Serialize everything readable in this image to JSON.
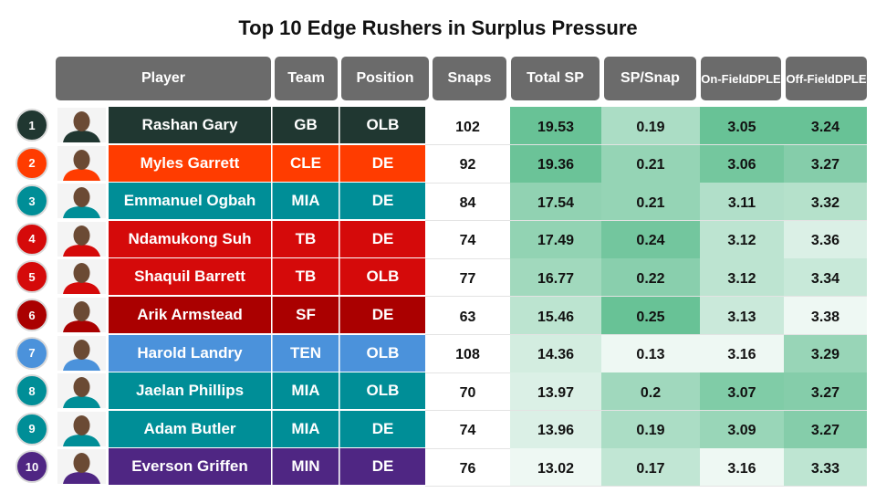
{
  "chart_data": {
    "type": "table",
    "title": "Top 10 Edge Rushers in Surplus Pressure",
    "columns": [
      "Player",
      "Team",
      "Position",
      "Snaps",
      "Total SP",
      "SP/Snap",
      "On-Field DPLE",
      "Off-Field DPLE"
    ],
    "rows": [
      {
        "rank": "1",
        "player": "Rashan Gary",
        "team": "GB",
        "position": "OLB",
        "snaps": "102",
        "total_sp": "19.53",
        "sp_snap": "0.19",
        "on_dple": "3.05",
        "off_dple": "3.24",
        "team_color": "#203731"
      },
      {
        "rank": "2",
        "player": "Myles Garrett",
        "team": "CLE",
        "position": "DE",
        "snaps": "92",
        "total_sp": "19.36",
        "sp_snap": "0.21",
        "on_dple": "3.06",
        "off_dple": "3.27",
        "team_color": "#FF3C00"
      },
      {
        "rank": "3",
        "player": "Emmanuel Ogbah",
        "team": "MIA",
        "position": "DE",
        "snaps": "84",
        "total_sp": "17.54",
        "sp_snap": "0.21",
        "on_dple": "3.11",
        "off_dple": "3.32",
        "team_color": "#008E97"
      },
      {
        "rank": "4",
        "player": "Ndamukong Suh",
        "team": "TB",
        "position": "DE",
        "snaps": "74",
        "total_sp": "17.49",
        "sp_snap": "0.24",
        "on_dple": "3.12",
        "off_dple": "3.36",
        "team_color": "#D50A0A"
      },
      {
        "rank": "5",
        "player": "Shaquil Barrett",
        "team": "TB",
        "position": "OLB",
        "snaps": "77",
        "total_sp": "16.77",
        "sp_snap": "0.22",
        "on_dple": "3.12",
        "off_dple": "3.34",
        "team_color": "#D50A0A"
      },
      {
        "rank": "6",
        "player": "Arik Armstead",
        "team": "SF",
        "position": "DE",
        "snaps": "63",
        "total_sp": "15.46",
        "sp_snap": "0.25",
        "on_dple": "3.13",
        "off_dple": "3.38",
        "team_color": "#AA0000"
      },
      {
        "rank": "7",
        "player": "Harold Landry",
        "team": "TEN",
        "position": "OLB",
        "snaps": "108",
        "total_sp": "14.36",
        "sp_snap": "0.13",
        "on_dple": "3.16",
        "off_dple": "3.29",
        "team_color": "#4B92DB"
      },
      {
        "rank": "8",
        "player": "Jaelan Phillips",
        "team": "MIA",
        "position": "OLB",
        "snaps": "70",
        "total_sp": "13.97",
        "sp_snap": "0.2",
        "on_dple": "3.07",
        "off_dple": "3.27",
        "team_color": "#008E97"
      },
      {
        "rank": "9",
        "player": "Adam Butler",
        "team": "MIA",
        "position": "DE",
        "snaps": "74",
        "total_sp": "13.96",
        "sp_snap": "0.19",
        "on_dple": "3.09",
        "off_dple": "3.27",
        "team_color": "#008E97"
      },
      {
        "rank": "10",
        "player": "Everson Griffen",
        "team": "MIN",
        "position": "DE",
        "snaps": "76",
        "total_sp": "13.02",
        "sp_snap": "0.17",
        "on_dple": "3.16",
        "off_dple": "3.33",
        "team_color": "#4F2683"
      }
    ]
  },
  "heat_colors": {
    "strongest": "#57bb8a",
    "weakest": "#ffffff"
  }
}
